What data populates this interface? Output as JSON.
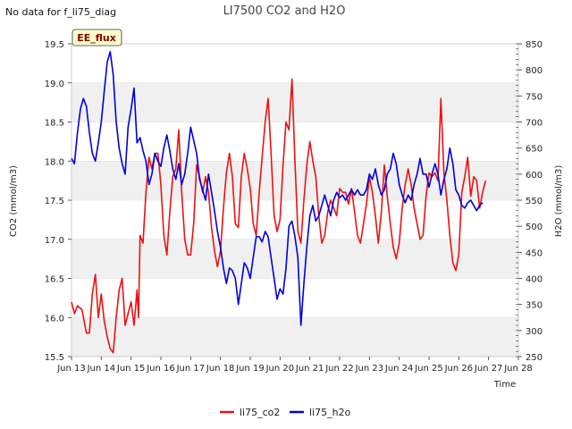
{
  "chart_data": {
    "type": "line",
    "title": "LI7500 CO2 and H2O",
    "no_data_note": "No data for f_li75_diag",
    "badge": "EE_flux",
    "xlabel": "Time",
    "ylabel_left": "CO2 (mmol/m3)",
    "ylabel_right": "H2O (mmol/m3)",
    "xlim": [
      13,
      28
    ],
    "ylim_left": [
      15.5,
      19.5
    ],
    "ylim_right": [
      250,
      850
    ],
    "x_ticks": [
      13,
      14,
      15,
      16,
      17,
      18,
      19,
      20,
      21,
      22,
      23,
      24,
      25,
      26,
      27,
      28
    ],
    "x_tick_labels": [
      "Jun 13",
      "Jun 14",
      "Jun 15",
      "Jun 16",
      "Jun 17",
      "Jun 18",
      "Jun 19",
      "Jun 20",
      "Jun 21",
      "Jun 22",
      "Jun 23",
      "Jun 24",
      "Jun 25",
      "Jun 26",
      "Jun 27",
      "Jun 28"
    ],
    "y_ticks_left": [
      "15.5",
      "16.0",
      "16.5",
      "17.0",
      "17.5",
      "18.0",
      "18.5",
      "19.0",
      "19.5"
    ],
    "y_ticks_right": [
      "250",
      "300",
      "350",
      "400",
      "450",
      "500",
      "550",
      "600",
      "650",
      "700",
      "750",
      "800",
      "850"
    ],
    "legend_position": "bottom-center",
    "series": [
      {
        "name": "li75_co2",
        "axis": "left",
        "color": "#ee1111",
        "x": [
          13.0,
          13.1,
          13.2,
          13.35,
          13.5,
          13.6,
          13.7,
          13.8,
          13.9,
          14.0,
          14.1,
          14.2,
          14.3,
          14.4,
          14.5,
          14.6,
          14.7,
          14.8,
          14.9,
          15.0,
          15.1,
          15.2,
          15.25,
          15.3,
          15.4,
          15.5,
          15.6,
          15.7,
          15.8,
          15.9,
          16.0,
          16.1,
          16.2,
          16.3,
          16.4,
          16.5,
          16.6,
          16.7,
          16.8,
          16.9,
          17.0,
          17.1,
          17.2,
          17.3,
          17.4,
          17.5,
          17.6,
          17.7,
          17.8,
          17.9,
          18.0,
          18.1,
          18.2,
          18.3,
          18.4,
          18.5,
          18.6,
          18.7,
          18.8,
          18.9,
          19.0,
          19.1,
          19.2,
          19.3,
          19.4,
          19.5,
          19.6,
          19.7,
          19.8,
          19.9,
          20.0,
          20.1,
          20.2,
          20.3,
          20.4,
          20.5,
          20.6,
          20.7,
          20.8,
          20.9,
          21.0,
          21.1,
          21.2,
          21.3,
          21.4,
          21.5,
          21.6,
          21.7,
          21.8,
          21.9,
          22.0,
          22.1,
          22.2,
          22.3,
          22.4,
          22.5,
          22.6,
          22.7,
          22.8,
          22.9,
          23.0,
          23.1,
          23.2,
          23.3,
          23.4,
          23.5,
          23.6,
          23.7,
          23.8,
          23.9,
          24.0,
          24.1,
          24.2,
          24.3,
          24.4,
          24.5,
          24.6,
          24.7,
          24.8,
          24.9,
          25.0,
          25.1,
          25.2,
          25.3,
          25.4,
          25.5,
          25.6,
          25.7,
          25.8,
          25.9,
          26.0,
          26.05,
          26.1,
          26.2,
          26.3,
          26.4,
          26.5,
          26.6,
          26.7,
          26.8,
          26.9
        ],
        "values": [
          16.2,
          16.05,
          16.15,
          16.1,
          15.8,
          15.8,
          16.3,
          16.55,
          16.0,
          16.3,
          15.95,
          15.75,
          15.6,
          15.55,
          16.0,
          16.35,
          16.5,
          15.9,
          16.05,
          16.2,
          15.9,
          16.35,
          16.0,
          17.05,
          16.95,
          17.6,
          18.05,
          17.9,
          18.1,
          18.1,
          17.7,
          17.05,
          16.8,
          17.35,
          17.8,
          17.9,
          18.4,
          17.6,
          17.0,
          16.8,
          16.8,
          17.2,
          17.95,
          17.8,
          17.6,
          17.8,
          17.6,
          17.15,
          16.85,
          16.65,
          16.85,
          17.4,
          17.85,
          18.1,
          17.8,
          17.2,
          17.15,
          17.8,
          18.1,
          17.9,
          17.65,
          17.2,
          17.05,
          17.6,
          18.05,
          18.5,
          18.8,
          18.1,
          17.3,
          17.1,
          17.25,
          17.95,
          18.5,
          18.4,
          19.05,
          18.0,
          17.1,
          16.95,
          17.5,
          17.95,
          18.25,
          18.0,
          17.8,
          17.3,
          16.95,
          17.05,
          17.35,
          17.5,
          17.4,
          17.3,
          17.65,
          17.6,
          17.6,
          17.45,
          17.65,
          17.35,
          17.05,
          16.95,
          17.2,
          17.45,
          17.8,
          17.6,
          17.3,
          16.95,
          17.35,
          17.95,
          17.55,
          17.2,
          16.9,
          16.75,
          16.95,
          17.4,
          17.7,
          17.9,
          17.7,
          17.4,
          17.2,
          17.0,
          17.05,
          17.55,
          17.85,
          17.8,
          17.85,
          17.75,
          18.8,
          17.85,
          17.5,
          17.05,
          16.7,
          16.6,
          16.8,
          17.2,
          17.6,
          17.8,
          18.05,
          17.55,
          17.8,
          17.75,
          17.4,
          17.6,
          17.75
        ],
        "x_extra_note": "",
        "x2": [],
        "values2": []
      },
      {
        "name": "li75_h2o",
        "axis": "right",
        "color": "#0000dd",
        "x": [
          13.0,
          13.1,
          13.2,
          13.3,
          13.4,
          13.5,
          13.6,
          13.7,
          13.8,
          13.9,
          14.0,
          14.1,
          14.2,
          14.3,
          14.4,
          14.5,
          14.6,
          14.7,
          14.8,
          14.9,
          15.0,
          15.1,
          15.2,
          15.3,
          15.4,
          15.5,
          15.6,
          15.7,
          15.8,
          15.9,
          16.0,
          16.1,
          16.2,
          16.3,
          16.4,
          16.5,
          16.6,
          16.7,
          16.8,
          16.9,
          17.0,
          17.1,
          17.2,
          17.3,
          17.4,
          17.5,
          17.6,
          17.7,
          17.8,
          17.9,
          18.0,
          18.1,
          18.2,
          18.3,
          18.4,
          18.5,
          18.6,
          18.7,
          18.8,
          18.9,
          19.0,
          19.1,
          19.2,
          19.3,
          19.4,
          19.5,
          19.6,
          19.7,
          19.8,
          19.9,
          20.0,
          20.1,
          20.2,
          20.3,
          20.4,
          20.5,
          20.6,
          20.7,
          20.8,
          20.9,
          21.0,
          21.1,
          21.2,
          21.3,
          21.4,
          21.5,
          21.6,
          21.7,
          21.8,
          21.9,
          22.0,
          22.1,
          22.2,
          22.3,
          22.4,
          22.5,
          22.6,
          22.7,
          22.8,
          22.9,
          23.0,
          23.1,
          23.2,
          23.3,
          23.4,
          23.5,
          23.6,
          23.7,
          23.8,
          23.9,
          24.0,
          24.1,
          24.2,
          24.3,
          24.4,
          24.5,
          24.6,
          24.7,
          24.8,
          24.9,
          25.0,
          25.1,
          25.2,
          25.3,
          25.4,
          25.5,
          25.6,
          25.7,
          25.8,
          25.9,
          26.0,
          26.1,
          26.2,
          26.3,
          26.4,
          26.5,
          26.6,
          26.7,
          26.8
        ],
        "values": [
          630,
          620,
          680,
          725,
          745,
          730,
          680,
          640,
          625,
          660,
          700,
          760,
          815,
          835,
          790,
          700,
          650,
          620,
          600,
          690,
          725,
          765,
          660,
          670,
          645,
          625,
          580,
          600,
          640,
          625,
          615,
          650,
          675,
          645,
          610,
          590,
          620,
          580,
          600,
          640,
          690,
          665,
          640,
          590,
          570,
          550,
          600,
          565,
          530,
          490,
          460,
          420,
          390,
          420,
          415,
          400,
          350,
          390,
          430,
          420,
          400,
          440,
          480,
          480,
          470,
          490,
          480,
          440,
          400,
          360,
          380,
          370,
          420,
          500,
          510,
          480,
          440,
          310,
          390,
          460,
          520,
          540,
          510,
          520,
          540,
          560,
          540,
          520,
          550,
          565,
          555,
          560,
          550,
          560,
          570,
          560,
          570,
          560,
          560,
          570,
          600,
          590,
          610,
          580,
          560,
          570,
          600,
          610,
          640,
          620,
          580,
          560,
          545,
          560,
          550,
          580,
          600,
          630,
          600,
          600,
          575,
          600,
          620,
          600,
          560,
          590,
          610,
          650,
          620,
          570,
          560,
          540,
          535,
          545,
          550,
          540,
          530,
          540,
          545
        ],
        "x_extra_note": "",
        "x2": [],
        "values2": []
      }
    ]
  }
}
